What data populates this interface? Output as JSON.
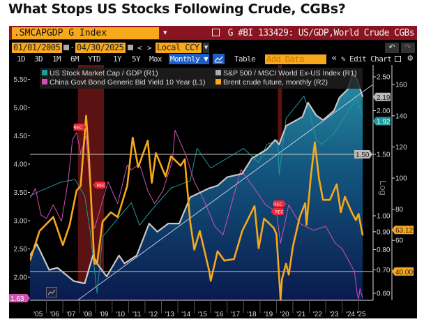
{
  "title": "What Stops US Stocks Following Crude, CGBs?",
  "toolbar": {
    "ticker": ".SMCAPGDP G Index",
    "ticker_dropdown": "▾",
    "chart_title": "G #BI 133429: US/GDP,World Crude CGBs",
    "start_date": "01/01/2005",
    "date_separator": "-",
    "end_date": "04/30/2025",
    "prev": "<",
    "next": ">",
    "currency": "Local CCY",
    "currency_dropdown": "▾",
    "undo": "↶",
    "redo": "↷",
    "periods": [
      "1D",
      "3D",
      "1M",
      "6M",
      "YTD",
      "1Y",
      "5Y",
      "Max"
    ],
    "frequency": "Monthly ▼",
    "table": "Table",
    "add_data_placeholder": "Add Data",
    "collapse": "«",
    "edit_chart": "✎ Edit Chart"
  },
  "colors": {
    "accent_orange": "#f7a81b",
    "header_red": "#8a1422",
    "selected_blue": "#1a5fc8",
    "recession": "#8b1c1c"
  },
  "chart_data": {
    "type": "line",
    "title": "",
    "log_label": "Log",
    "x_tick_labels": [
      "'05",
      "'06",
      "'07",
      "'08",
      "'09",
      "'10",
      "'11",
      "'12",
      "'13",
      "'14",
      "'15",
      "'16",
      "'17",
      "'18",
      "'19",
      "'20",
      "'21",
      "'22",
      "'23",
      "'24",
      "'25"
    ],
    "x_range": [
      "2005-01",
      "2025-04"
    ],
    "axes": {
      "L1": {
        "ticks": [
          "5.50",
          "5.00",
          "4.50",
          "4.00",
          "3.50",
          "3.00",
          "2.50",
          "2.00"
        ],
        "scale": "linear"
      },
      "R1": {
        "ticks": [
          "2.50",
          "2.00",
          "1.50",
          "1.00",
          "0.90",
          "0.80",
          "0.70",
          "0.60"
        ],
        "scale": "log"
      },
      "R2": {
        "ticks": [
          "160",
          "140",
          "120",
          "100",
          "80",
          "60"
        ],
        "scale": "linear"
      }
    },
    "legend_placement": "top-left",
    "series": [
      {
        "name": "US Stock Market Cap / GDP  (R1)",
        "axis": "R1",
        "color": "#1e9a9a",
        "last_label": "1.92",
        "points": [
          [
            "2005-01",
            1.14
          ],
          [
            "2005-09",
            1.18
          ],
          [
            "2006-12",
            1.25
          ],
          [
            "2007-10",
            1.27
          ],
          [
            "2008-05",
            1.14
          ],
          [
            "2008-09",
            0.9
          ],
          [
            "2009-02",
            0.6
          ],
          [
            "2009-06",
            0.87
          ],
          [
            "2010-03",
            0.96
          ],
          [
            "2011-03",
            1.09
          ],
          [
            "2011-09",
            0.94
          ],
          [
            "2012-06",
            1.04
          ],
          [
            "2013-08",
            1.2
          ],
          [
            "2014-10",
            1.26
          ],
          [
            "2015-03",
            1.56
          ],
          [
            "2016-01",
            1.37
          ],
          [
            "2018-01",
            1.56
          ],
          [
            "2018-12",
            1.42
          ],
          [
            "2019-06",
            1.6
          ],
          [
            "2020-02",
            1.65
          ],
          [
            "2020-03",
            1.31
          ],
          [
            "2020-08",
            1.9
          ],
          [
            "2021-09",
            2.2
          ],
          [
            "2022-01",
            1.99
          ],
          [
            "2022-06",
            1.65
          ],
          [
            "2022-10",
            1.6
          ],
          [
            "2023-07",
            1.72
          ],
          [
            "2024-09",
            2.1
          ],
          [
            "2024-12",
            2.15
          ],
          [
            "2025-04",
            1.92
          ]
        ]
      },
      {
        "name": "S&P 500 / MSCI World Ex-US Index (R1)",
        "axis": "R1",
        "color": "#c8c8c8",
        "last_label": "2.19",
        "points": [
          [
            "2005-01",
            0.77
          ],
          [
            "2005-06",
            0.83
          ],
          [
            "2006-03",
            0.7
          ],
          [
            "2006-09",
            0.71
          ],
          [
            "2007-09",
            0.65
          ],
          [
            "2008-05",
            0.64
          ],
          [
            "2008-11",
            0.77
          ],
          [
            "2009-03",
            0.72
          ],
          [
            "2009-09",
            0.67
          ],
          [
            "2010-06",
            0.77
          ],
          [
            "2010-10",
            0.73
          ],
          [
            "2011-07",
            0.77
          ],
          [
            "2012-04",
            0.95
          ],
          [
            "2012-10",
            0.9
          ],
          [
            "2013-06",
            0.95
          ],
          [
            "2014-02",
            0.95
          ],
          [
            "2014-10",
            1.13
          ],
          [
            "2015-12",
            1.2
          ],
          [
            "2016-06",
            1.22
          ],
          [
            "2017-01",
            1.29
          ],
          [
            "2017-12",
            1.32
          ],
          [
            "2018-07",
            1.46
          ],
          [
            "2019-06",
            1.55
          ],
          [
            "2019-12",
            1.65
          ],
          [
            "2020-03",
            1.6
          ],
          [
            "2020-08",
            1.81
          ],
          [
            "2021-08",
            1.92
          ],
          [
            "2021-12",
            2.11
          ],
          [
            "2022-06",
            1.94
          ],
          [
            "2022-11",
            1.88
          ],
          [
            "2023-07",
            2.0
          ],
          [
            "2023-11",
            2.18
          ],
          [
            "2024-05",
            2.3
          ],
          [
            "2024-09",
            2.56
          ],
          [
            "2024-12",
            2.45
          ],
          [
            "2025-04",
            2.19
          ]
        ]
      },
      {
        "name": "China Govt Bond Generic Bid Yield 10 Year (L1)",
        "axis": "L1",
        "color": "#d24fb4",
        "last_label": "1.63",
        "points": [
          [
            "2005-01",
            3.4
          ],
          [
            "2005-05",
            3.57
          ],
          [
            "2005-09",
            3.1
          ],
          [
            "2006-01",
            3.04
          ],
          [
            "2006-06",
            3.28
          ],
          [
            "2006-12",
            2.99
          ],
          [
            "2007-05",
            3.73
          ],
          [
            "2007-08",
            4.43
          ],
          [
            "2007-11",
            4.56
          ],
          [
            "2008-02",
            4.19
          ],
          [
            "2008-06",
            4.5
          ],
          [
            "2008-10",
            3.2
          ],
          [
            "2008-12",
            2.86
          ],
          [
            "2009-03",
            3.1
          ],
          [
            "2009-10",
            3.69
          ],
          [
            "2010-05",
            3.3
          ],
          [
            "2010-12",
            3.98
          ],
          [
            "2011-03",
            3.9
          ],
          [
            "2011-09",
            4.0
          ],
          [
            "2012-03",
            3.53
          ],
          [
            "2012-08",
            3.3
          ],
          [
            "2013-02",
            3.53
          ],
          [
            "2013-09",
            4.06
          ],
          [
            "2013-11",
            4.6
          ],
          [
            "2014-07",
            4.15
          ],
          [
            "2015-01",
            3.69
          ],
          [
            "2015-08",
            3.36
          ],
          [
            "2016-04",
            2.9
          ],
          [
            "2016-10",
            2.75
          ],
          [
            "2017-11",
            3.9
          ],
          [
            "2018-10",
            3.53
          ],
          [
            "2019-05",
            3.28
          ],
          [
            "2020-01",
            3.16
          ],
          [
            "2020-04",
            2.6
          ],
          [
            "2020-10",
            3.28
          ],
          [
            "2021-06",
            2.95
          ],
          [
            "2022-04",
            2.83
          ],
          [
            "2023-01",
            2.9
          ],
          [
            "2023-08",
            2.6
          ],
          [
            "2024-01",
            2.5
          ],
          [
            "2024-06",
            2.28
          ],
          [
            "2024-10",
            2.1
          ],
          [
            "2024-12",
            1.7
          ],
          [
            "2025-01",
            1.62
          ],
          [
            "2025-02",
            1.8
          ],
          [
            "2025-04",
            1.63
          ]
        ]
      },
      {
        "name": "Brent crude future, monthly (R2)",
        "axis": "R2",
        "color": "#f7a81b",
        "last_label": "63.12",
        "points": [
          [
            "2005-01",
            47
          ],
          [
            "2005-08",
            66
          ],
          [
            "2006-06",
            75
          ],
          [
            "2007-01",
            57
          ],
          [
            "2007-06",
            70
          ],
          [
            "2007-11",
            92
          ],
          [
            "2008-02",
            95
          ],
          [
            "2008-06",
            140
          ],
          [
            "2008-08",
            115
          ],
          [
            "2008-12",
            45
          ],
          [
            "2009-02",
            45
          ],
          [
            "2009-06",
            72
          ],
          [
            "2009-12",
            78
          ],
          [
            "2010-05",
            75
          ],
          [
            "2010-12",
            95
          ],
          [
            "2011-04",
            126
          ],
          [
            "2011-08",
            107
          ],
          [
            "2012-03",
            124
          ],
          [
            "2012-06",
            97
          ],
          [
            "2012-09",
            116
          ],
          [
            "2013-04",
            101
          ],
          [
            "2013-08",
            114
          ],
          [
            "2014-03",
            108
          ],
          [
            "2014-06",
            112
          ],
          [
            "2014-10",
            72
          ],
          [
            "2015-01",
            54
          ],
          [
            "2015-05",
            66
          ],
          [
            "2015-12",
            40
          ],
          [
            "2016-01",
            34
          ],
          [
            "2016-06",
            53
          ],
          [
            "2016-11",
            47
          ],
          [
            "2017-06",
            48
          ],
          [
            "2017-12",
            66
          ],
          [
            "2018-09",
            82
          ],
          [
            "2018-12",
            55
          ],
          [
            "2019-04",
            74
          ],
          [
            "2019-11",
            68
          ],
          [
            "2020-01",
            64
          ],
          [
            "2020-04",
            22
          ],
          [
            "2020-05",
            35
          ],
          [
            "2020-08",
            45
          ],
          [
            "2020-10",
            38
          ],
          [
            "2021-01",
            56
          ],
          [
            "2021-06",
            75
          ],
          [
            "2021-10",
            84
          ],
          [
            "2021-11",
            70
          ],
          [
            "2022-02",
            100
          ],
          [
            "2022-05",
            123
          ],
          [
            "2022-08",
            100
          ],
          [
            "2022-11",
            86
          ],
          [
            "2023-04",
            86
          ],
          [
            "2023-09",
            96
          ],
          [
            "2023-12",
            78
          ],
          [
            "2024-03",
            88
          ],
          [
            "2024-08",
            78
          ],
          [
            "2024-11",
            73
          ],
          [
            "2025-01",
            77
          ],
          [
            "2025-04",
            63.12
          ]
        ]
      }
    ],
    "horizontal_lines": [
      {
        "axis": "R1",
        "value": 1.5,
        "label": "1.50",
        "color": "#cccccc"
      },
      {
        "axis": "R2",
        "value": 40,
        "label": "40.00",
        "color": "#f5a050"
      }
    ],
    "trend_line": {
      "axis": "R1",
      "from": [
        "2007-11",
        0.57
      ],
      "to": [
        "2025-11",
        2.37
      ]
    },
    "recessions": [
      {
        "from": "2007-12",
        "to": "2009-06",
        "label": "REC"
      },
      {
        "from": "2020-02",
        "to": "2020-04",
        "label": "REC"
      }
    ]
  }
}
